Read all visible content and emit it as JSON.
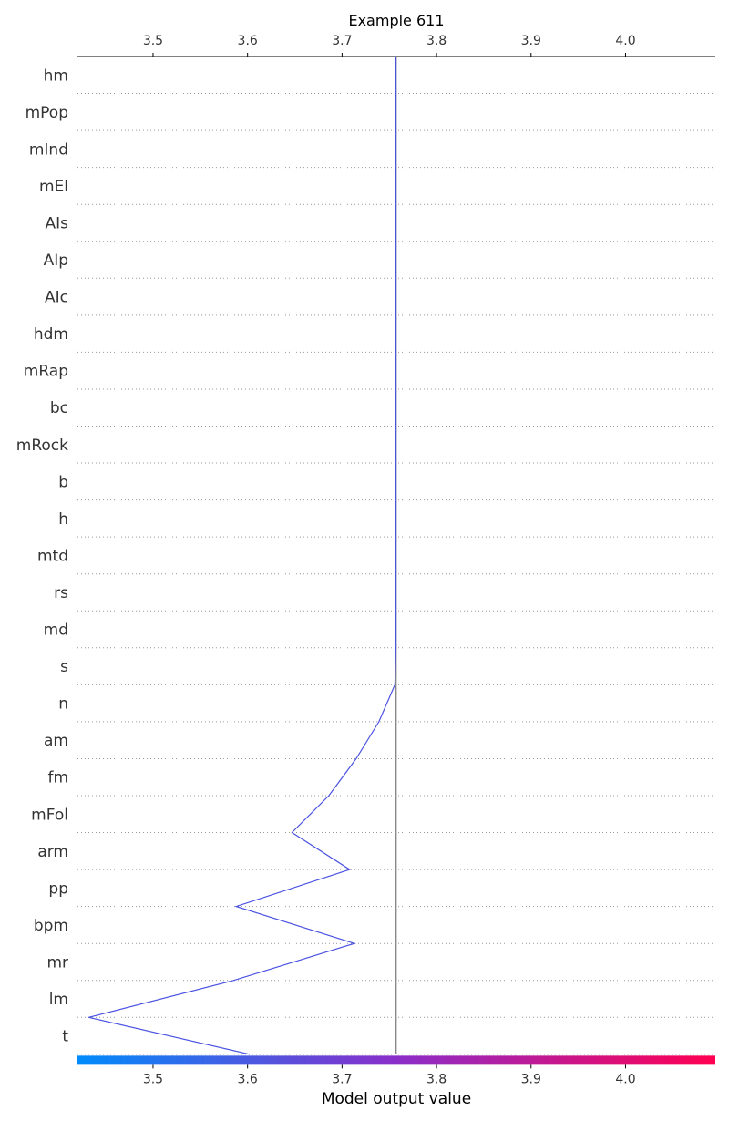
{
  "chart_data": {
    "type": "line",
    "title": "Example 611",
    "xlabel": "Model output value",
    "ylabel": "",
    "xlim": [
      3.42,
      4.095
    ],
    "xticks": [
      3.5,
      3.6,
      3.7,
      3.8,
      3.9,
      4.0
    ],
    "xtick_labels": [
      "3.5",
      "3.6",
      "3.7",
      "3.8",
      "3.9",
      "4.0"
    ],
    "base_value": 3.757,
    "grid": "dotted horizontal",
    "features": [
      "hm",
      "mPop",
      "mInd",
      "mEl",
      "AIs",
      "AIp",
      "AIc",
      "hdm",
      "mRap",
      "bc",
      "mRock",
      "b",
      "h",
      "mtd",
      "rs",
      "md",
      "s",
      "n",
      "am",
      "fm",
      "mFol",
      "arm",
      "pp",
      "bpm",
      "mr",
      "lm",
      "t"
    ],
    "path_x": [
      3.757,
      3.757,
      3.757,
      3.757,
      3.757,
      3.757,
      3.757,
      3.757,
      3.757,
      3.757,
      3.757,
      3.757,
      3.757,
      3.757,
      3.757,
      3.757,
      3.757,
      3.756,
      3.739,
      3.715,
      3.686,
      3.647,
      3.708,
      3.588,
      3.713,
      3.585,
      3.432,
      3.602
    ],
    "colors": {
      "line": "#4a53e0",
      "base_line": "#888888",
      "grid": "#999999",
      "axis": "#000000",
      "colorbar_low": "#008bfb",
      "colorbar_mid": "#8a2ec9",
      "colorbar_high": "#ff0052"
    }
  }
}
